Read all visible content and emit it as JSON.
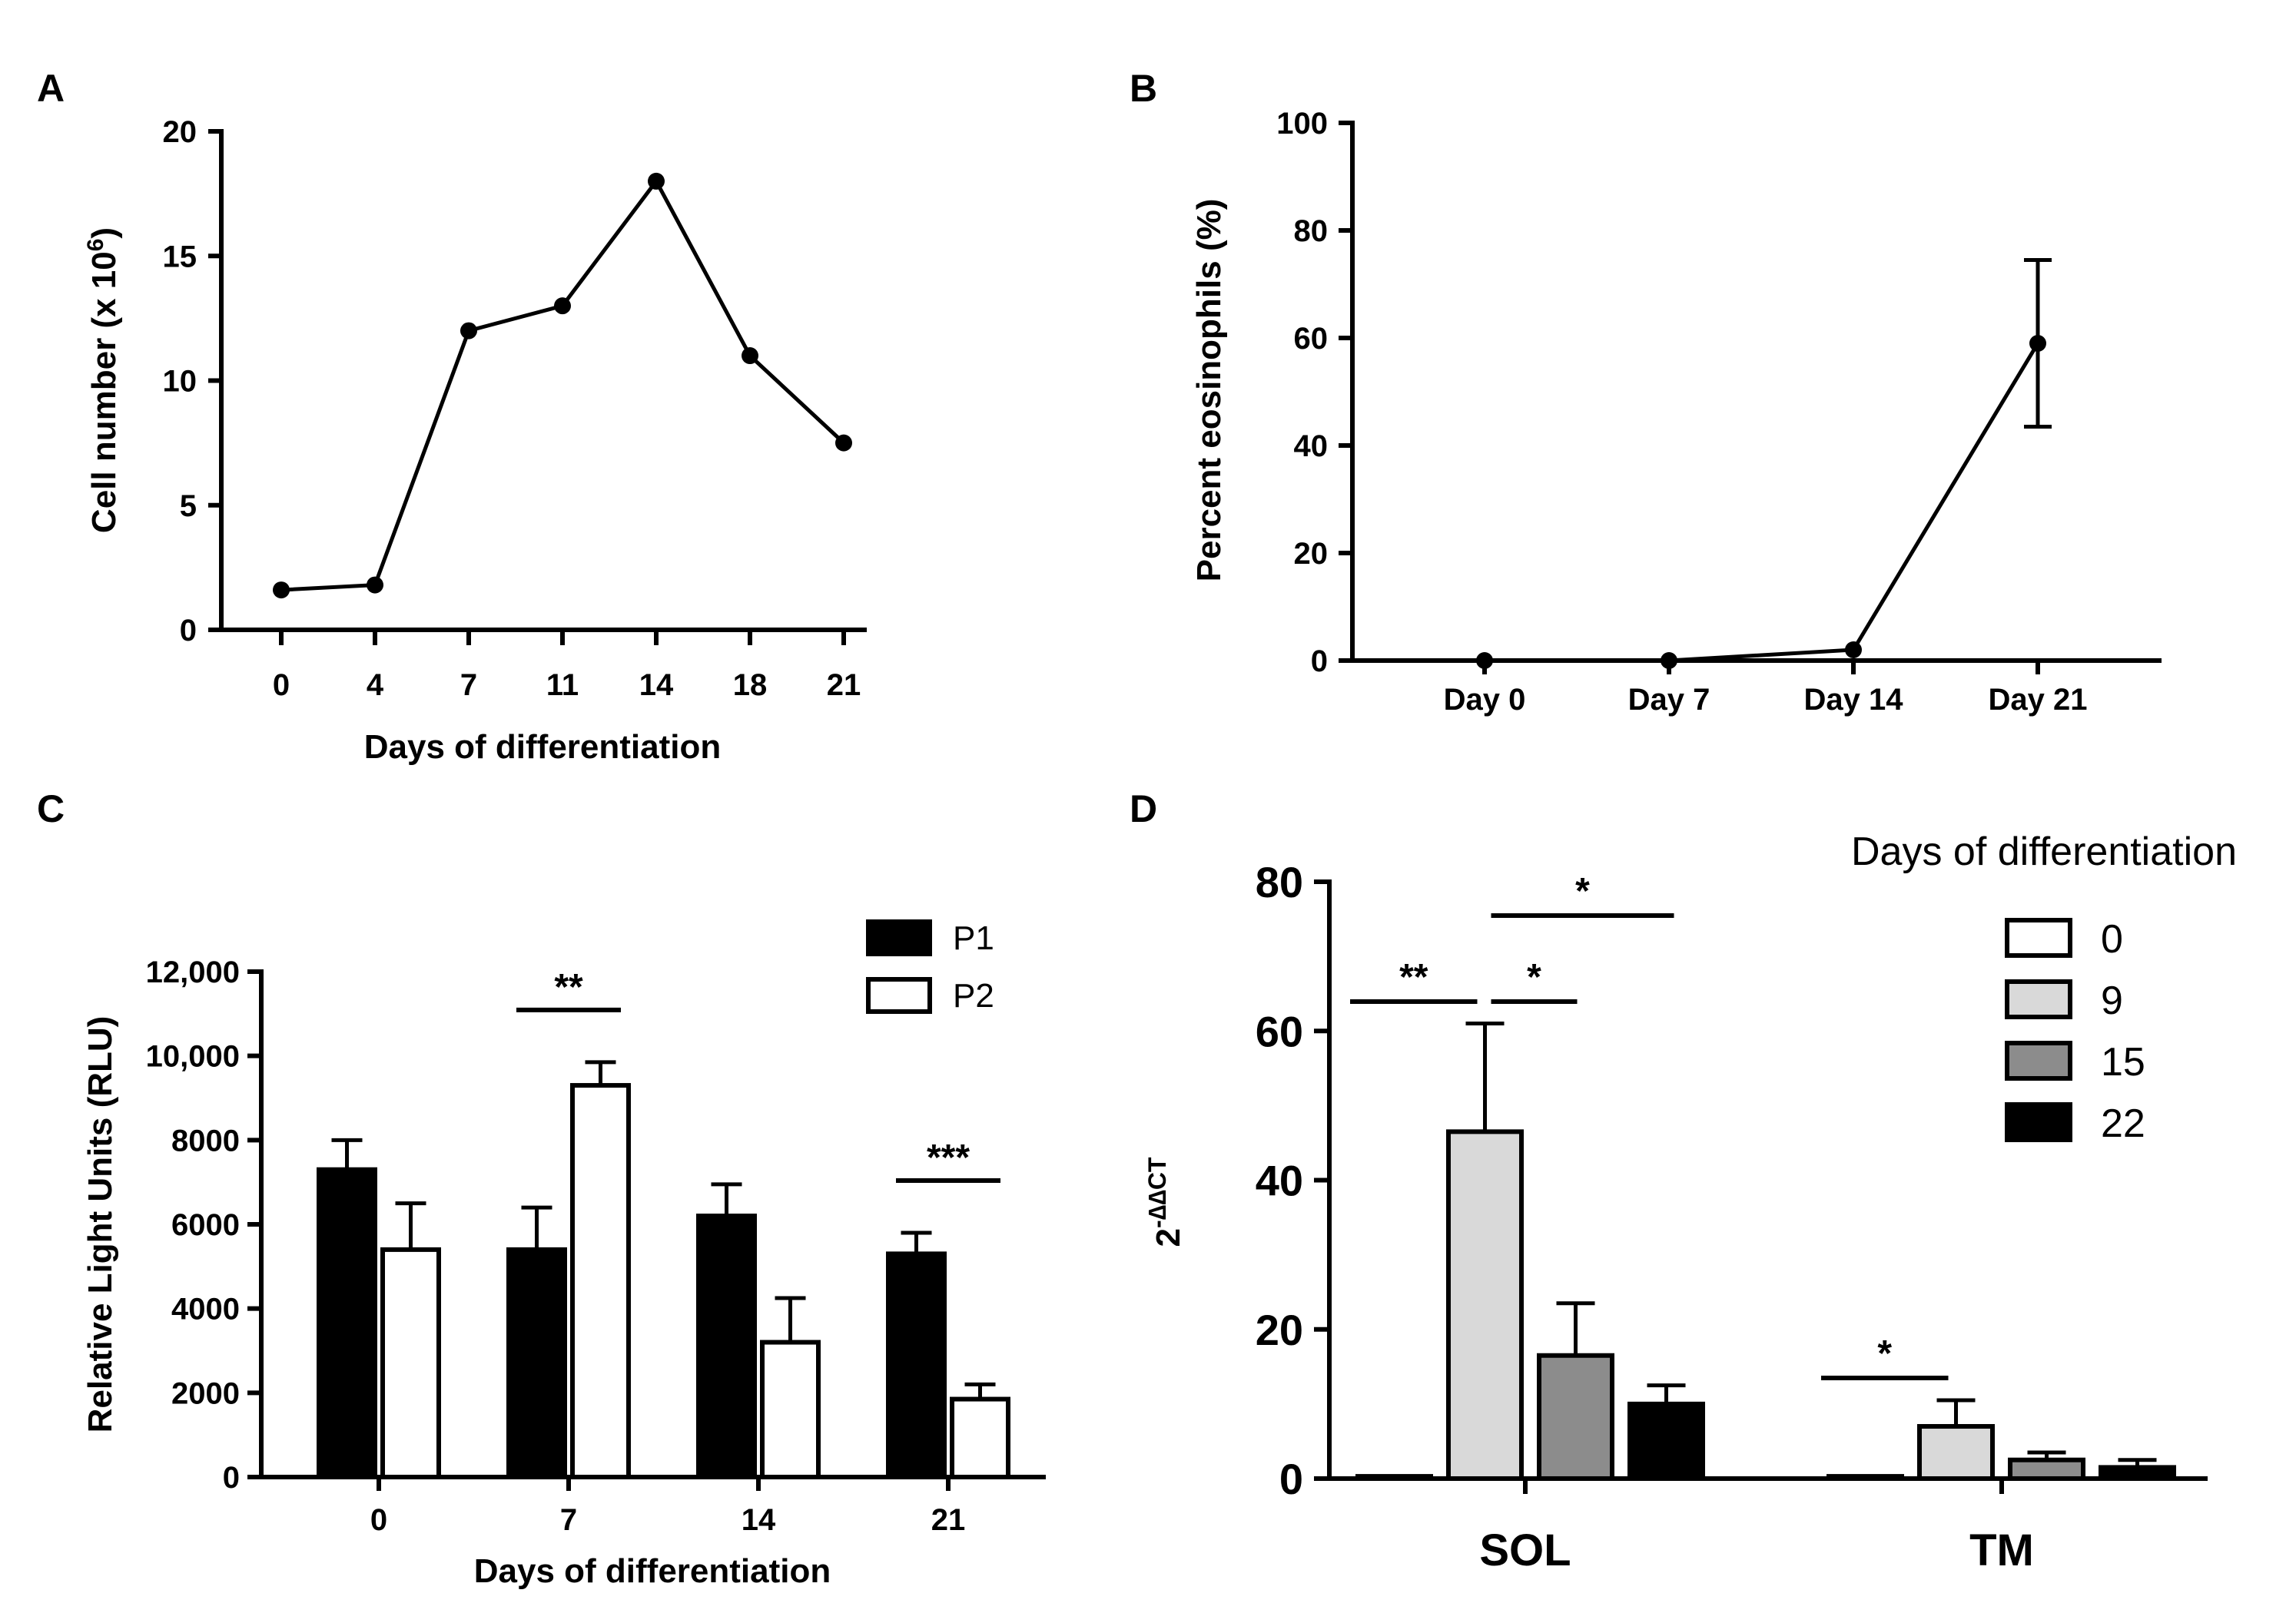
{
  "chart_data": [
    {
      "panel": "A",
      "type": "line",
      "x": [
        0,
        4,
        7,
        11,
        14,
        18,
        21
      ],
      "values": [
        1.6,
        1.8,
        12,
        13,
        18,
        11,
        7.5
      ],
      "categories": [
        "0",
        "4",
        "7",
        "11",
        "14",
        "18",
        "21"
      ],
      "xlabel": "Days of differentiation",
      "ylabel_main": "Cell number (x 10",
      "ylabel_sup": "6",
      "ylabel_end": ")",
      "ylim": [
        0,
        20
      ],
      "yticks": [
        "0",
        "5",
        "10",
        "15",
        "20"
      ],
      "yticks_values": [
        0,
        5,
        10,
        15,
        20
      ]
    },
    {
      "panel": "B",
      "type": "line",
      "categories": [
        "Day 0",
        "Day 7",
        "Day 14",
        "Day 21"
      ],
      "values": [
        0,
        0,
        2,
        59
      ],
      "error": [
        0,
        0,
        0,
        15.5
      ],
      "ylabel": "Percent eosinophils (%)",
      "ylim": [
        0,
        100
      ],
      "yticks": [
        "0",
        "20",
        "40",
        "60",
        "80",
        "100"
      ],
      "yticks_values": [
        0,
        20,
        40,
        60,
        80,
        100
      ]
    },
    {
      "panel": "C",
      "type": "bar",
      "categories": [
        "0",
        "7",
        "14",
        "21"
      ],
      "series": [
        {
          "name": "P1",
          "values": [
            7300,
            5400,
            6200,
            5300
          ],
          "error": [
            700,
            1000,
            750,
            500
          ],
          "color": "#000000"
        },
        {
          "name": "P2",
          "values": [
            5400,
            9300,
            3200,
            1850
          ],
          "error": [
            1100,
            550,
            1050,
            350
          ],
          "color": "#ffffff"
        }
      ],
      "xlabel": "Days of differentiation",
      "ylabel": "Relative Light Units (RLU)",
      "ylim": [
        0,
        12000
      ],
      "yticks": [
        "0",
        "2000",
        "4000",
        "6000",
        "8000",
        "10,000",
        "12,000"
      ],
      "yticks_values": [
        0,
        2000,
        4000,
        6000,
        8000,
        10000,
        12000
      ],
      "significance": [
        {
          "category": "7",
          "label": "**"
        },
        {
          "category": "21",
          "label": "***"
        }
      ]
    },
    {
      "panel": "D",
      "type": "bar",
      "categories": [
        "SOL",
        "TM"
      ],
      "series": [
        {
          "name": "0",
          "values": [
            0.3,
            0.3
          ],
          "error": [
            0,
            0
          ],
          "color": "#ffffff"
        },
        {
          "name": "9",
          "values": [
            46.5,
            7
          ],
          "error": [
            14.5,
            3.5
          ],
          "color": "#d9d9d9"
        },
        {
          "name": "15",
          "values": [
            16.5,
            2.5
          ],
          "error": [
            7,
            1
          ],
          "color": "#8c8c8c"
        },
        {
          "name": "22",
          "values": [
            10,
            1.5
          ],
          "error": [
            2.5,
            1
          ],
          "color": "#000000"
        }
      ],
      "ylabel_base": "2",
      "ylabel_sup": "-∆∆CT",
      "legend_title": "Days of differentiation",
      "ylim": [
        0,
        80
      ],
      "yticks": [
        "0",
        "20",
        "40",
        "60",
        "80"
      ],
      "yticks_values": [
        0,
        20,
        40,
        60,
        80
      ],
      "significance": [
        {
          "category": "SOL",
          "from": "0",
          "to": "9",
          "label": "**"
        },
        {
          "category": "SOL",
          "from": "9",
          "to": "15",
          "label": "*"
        },
        {
          "category": "SOL",
          "from": "9",
          "to": "22",
          "label": "*"
        },
        {
          "category": "TM",
          "from": "0",
          "to": "9",
          "label": "*"
        }
      ]
    }
  ],
  "panels": {
    "A": "A",
    "B": "B",
    "C": "C",
    "D": "D"
  }
}
